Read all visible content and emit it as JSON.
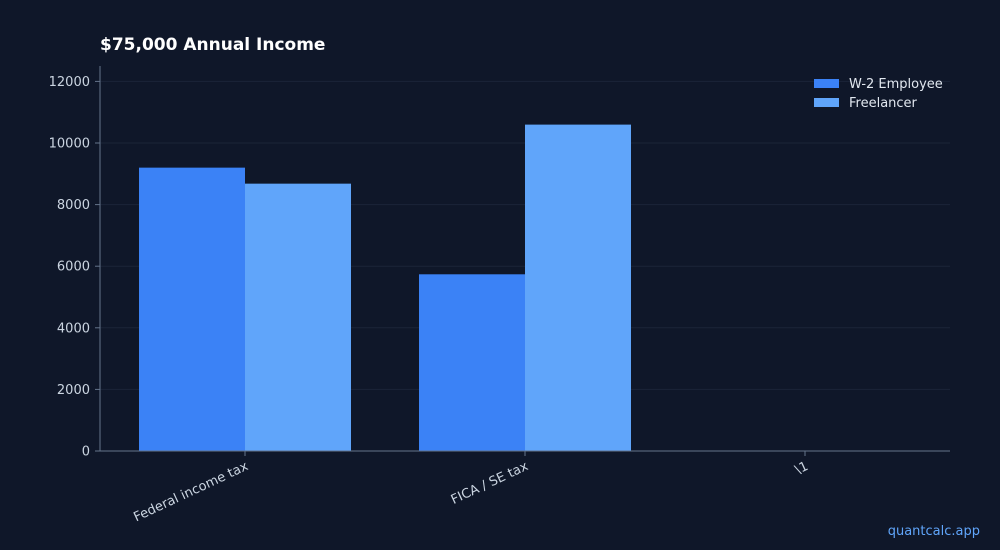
{
  "watermark": "quantcalc.app",
  "colors": {
    "background": "#0f1729",
    "axis": "#64748b",
    "grid": "#1b2538",
    "series": [
      "#3b82f6",
      "#60a5fa"
    ]
  },
  "chart_data": {
    "type": "bar",
    "title": "$75,000 Annual Income",
    "xlabel": "",
    "ylabel": "",
    "categories": [
      "Federal income tax",
      "FICA / SE tax",
      "\\1"
    ],
    "series": [
      {
        "name": "W-2 Employee",
        "values": [
          9200,
          5737,
          0
        ]
      },
      {
        "name": "Freelancer",
        "values": [
          8680,
          10597,
          0
        ]
      }
    ],
    "ylim": [
      0,
      12500
    ],
    "yticks": [
      0,
      2000,
      4000,
      6000,
      8000,
      10000,
      12000
    ],
    "grid": true,
    "legend": "top-right"
  }
}
